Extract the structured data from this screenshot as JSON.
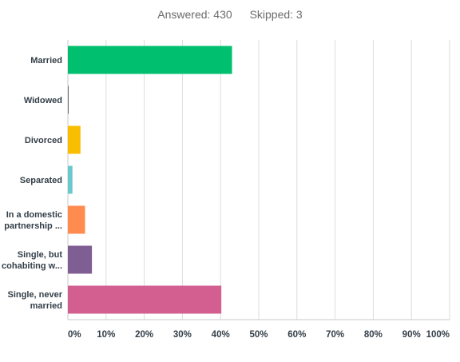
{
  "header": {
    "answered": "Answered: 430",
    "skipped": "Skipped: 3"
  },
  "chart_data": {
    "type": "bar",
    "orientation": "horizontal",
    "categories": [
      [
        "Married"
      ],
      [
        "Widowed"
      ],
      [
        "Divorced"
      ],
      [
        "Separated"
      ],
      [
        "In a domestic",
        "partnership ..."
      ],
      [
        "Single, but",
        "cohabiting w..."
      ],
      [
        "Single, never",
        "married"
      ]
    ],
    "values": [
      43.0,
      0.2,
      3.3,
      1.2,
      4.5,
      6.3,
      40.2
    ],
    "colors": [
      "#00bf6f",
      "#6e6e6e",
      "#f9be00",
      "#6bc8cd",
      "#ff8b4f",
      "#7f5e93",
      "#d25f90"
    ],
    "xlim": [
      0,
      100
    ],
    "xticks": [
      "0%",
      "10%",
      "20%",
      "30%",
      "40%",
      "50%",
      "60%",
      "70%",
      "80%",
      "90%",
      "100%"
    ],
    "grid": true,
    "legend": "none"
  }
}
